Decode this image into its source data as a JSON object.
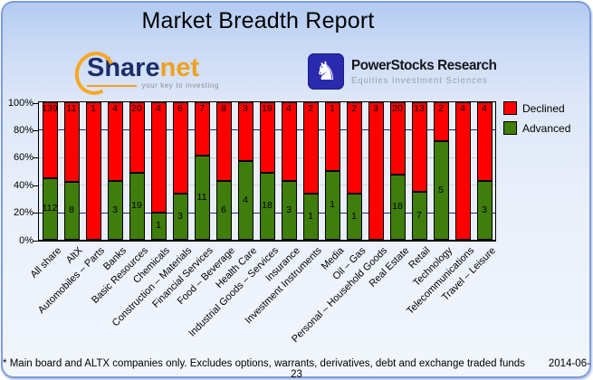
{
  "title": "Market Breadth Report",
  "logos": {
    "sharenet": {
      "word_part1": "Share",
      "word_part2": "net",
      "tagline": "your key to investing"
    },
    "powerstocks": {
      "knight_glyph": "♞",
      "name": "PowerStocks  Research",
      "subtitle": "Equities Investment Sciences"
    }
  },
  "legend": [
    {
      "label": "Declined",
      "color": "#ff0000"
    },
    {
      "label": "Advanced",
      "color": "#3f7d0c"
    }
  ],
  "chart_data": {
    "type": "bar",
    "stacked": true,
    "stack_mode": "percent_of_total",
    "title": "Market Breadth Report",
    "categories": [
      "All share",
      "AltX",
      "Automobiles – Parts",
      "Banks",
      "Basic Resources",
      "Chemicals",
      "Construction – Materials",
      "Financial Services",
      "Food – Beverage",
      "Health Care",
      "Industrial Goods – Services",
      "Insurance",
      "Investment Instruments",
      "Media",
      "Oil – Gas",
      "Personal – Household Goods",
      "Real Estate",
      "Retail",
      "Technology",
      "Telecommunications",
      "Travel – Leisure"
    ],
    "series": [
      {
        "name": "Advanced",
        "color": "#3f7d0c",
        "values": [
          112,
          8,
          0,
          3,
          19,
          1,
          3,
          11,
          6,
          4,
          18,
          3,
          1,
          1,
          1,
          0,
          18,
          7,
          5,
          0,
          3
        ]
      },
      {
        "name": "Declined",
        "color": "#ff0000",
        "values": [
          139,
          11,
          1,
          4,
          20,
          4,
          6,
          7,
          8,
          3,
          19,
          4,
          2,
          1,
          2,
          3,
          20,
          13,
          2,
          4,
          4
        ]
      }
    ],
    "ylabel": "",
    "xlabel": "",
    "ylim": [
      0,
      100
    ],
    "y_ticks": [
      "0%",
      "20%",
      "40%",
      "60%",
      "80%",
      "100%"
    ],
    "gridlines": [
      {
        "pct": 80,
        "color": "#23237a"
      },
      {
        "pct": 60,
        "color": "#c9c9c9"
      },
      {
        "pct": 40,
        "color": "#d4d4d4"
      },
      {
        "pct": 20,
        "color": "#23237a"
      }
    ],
    "legend_position": "top-right"
  },
  "footer": {
    "note": "* Main board and ALTX companies only. Excludes options, warrants, derivatives, debt and exchange traded funds",
    "date": "2014-06-23"
  }
}
